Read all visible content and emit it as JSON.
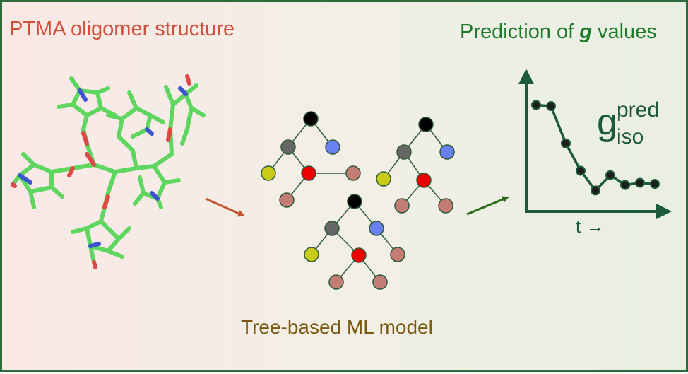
{
  "labels": {
    "left_title": "PTMA oligomer structure",
    "right_title_prefix": "Prediction of ",
    "right_title_symbol": "g",
    "right_title_suffix": " values",
    "tree_caption": "Tree-based ML model",
    "x_axis": "t →",
    "g_base": "g",
    "g_superscript": "pred",
    "g_subscript": "iso"
  },
  "colors": {
    "border": "#2e6b3c",
    "left_title": "#d0503a",
    "right_title": "#1d7a2a",
    "caption": "#7a5a12",
    "arrow_left": "#c0552e",
    "arrow_right": "#2e6a1c",
    "plot": "#1d5a3a",
    "molecule_carbon": "#5fd660",
    "molecule_oxygen": "#e04848",
    "molecule_nitrogen": "#3b55cf",
    "node_root": "#000000",
    "node_gray": "#666666",
    "node_blue": "#6a80ee",
    "node_yellow": "#c8cc16",
    "node_red": "#ee0000",
    "node_leaf": "#c37d74"
  },
  "chart_data": {
    "type": "line",
    "title": "",
    "xlabel": "t →",
    "ylabel": "",
    "series": [
      {
        "name": "g_iso_pred",
        "values": [
          0.9,
          0.89,
          0.55,
          0.3,
          0.12,
          0.26,
          0.17,
          0.19,
          0.18
        ]
      }
    ]
  }
}
